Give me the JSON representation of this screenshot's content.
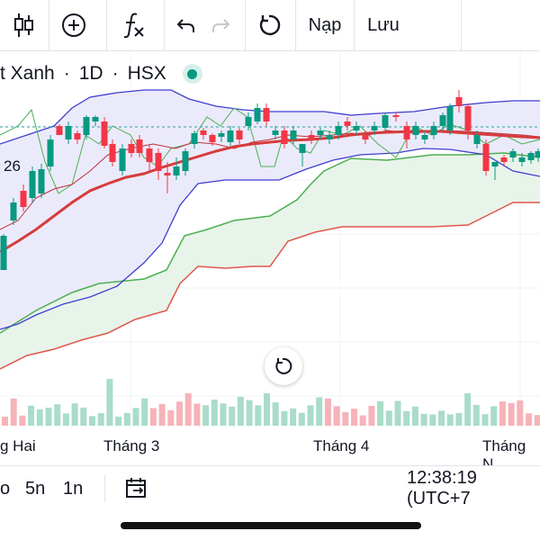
{
  "toolbar": {
    "buttons": [
      {
        "name": "candlestick-icon"
      },
      {
        "name": "add-indicator-icon"
      },
      {
        "name": "function-icon"
      },
      {
        "name": "undo-icon"
      },
      {
        "name": "redo-icon"
      },
      {
        "name": "refresh-icon"
      }
    ],
    "load_label": "Nạp",
    "save_label": "Lưu"
  },
  "symbol": {
    "name": "t Xanh",
    "interval": "1D",
    "exchange": "HSX",
    "status_color": "#089981"
  },
  "price_label": "26",
  "time_axis": [
    "g Hai",
    "Tháng 3",
    "Tháng 4",
    "Tháng N"
  ],
  "bottom": {
    "ranges": [
      "o",
      "5n",
      "1n"
    ],
    "clock": "12:38:19 (UTC+7"
  },
  "colors": {
    "up": "#089981",
    "down": "#f23645",
    "bollinger": "#3f3fd0",
    "bollinger_fill": "#e7e6fa",
    "ma": "#d63c3c",
    "cloud_green": "#4caf50",
    "cloud_red": "#e0574a",
    "cloud_fill": "#e8f4ea"
  }
}
